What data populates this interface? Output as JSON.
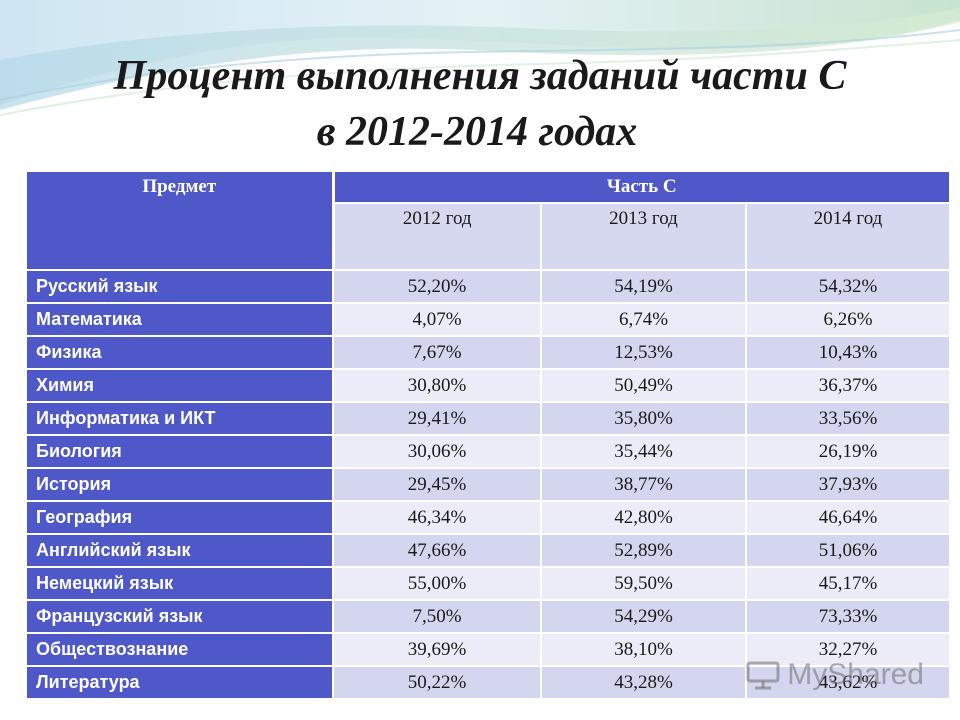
{
  "slide": {
    "title_line1": "Процент выполнения заданий части С",
    "title_line2": "в 2012-2014 годах"
  },
  "table": {
    "header": {
      "subject": "Предмет",
      "part": "Часть С",
      "years": [
        "2012 год",
        "2013 год",
        "2014 год"
      ]
    },
    "rows": [
      {
        "subject": "Русский язык",
        "values": [
          "52,20%",
          "54,19%",
          "54,32%"
        ]
      },
      {
        "subject": "Математика",
        "values": [
          "4,07%",
          "6,74%",
          "6,26%"
        ]
      },
      {
        "subject": "Физика",
        "values": [
          "7,67%",
          "12,53%",
          "10,43%"
        ]
      },
      {
        "subject": "Химия",
        "values": [
          "30,80%",
          "50,49%",
          "36,37%"
        ]
      },
      {
        "subject": "Информатика и ИКТ",
        "values": [
          "29,41%",
          "35,80%",
          "33,56%"
        ]
      },
      {
        "subject": "Биология",
        "values": [
          "30,06%",
          "35,44%",
          "26,19%"
        ]
      },
      {
        "subject": "История",
        "values": [
          "29,45%",
          "38,77%",
          "37,93%"
        ]
      },
      {
        "subject": "География",
        "values": [
          "46,34%",
          "42,80%",
          "46,64%"
        ]
      },
      {
        "subject": "Английский язык",
        "values": [
          "47,66%",
          "52,89%",
          "51,06%"
        ]
      },
      {
        "subject": "Немецкий язык",
        "values": [
          "55,00%",
          "59,50%",
          "45,17%"
        ]
      },
      {
        "subject": "Французский язык",
        "values": [
          "7,50%",
          "54,29%",
          "73,33%"
        ]
      },
      {
        "subject": "Обществознание",
        "values": [
          "39,69%",
          "38,10%",
          "32,27%"
        ]
      },
      {
        "subject": "Литература",
        "values": [
          "50,22%",
          "43,28%",
          "43,62%"
        ]
      }
    ]
  },
  "watermark": {
    "text": "MyShared"
  },
  "colors": {
    "header_blue": "#4f58c8",
    "row_light": "#ebecf7",
    "row_mid": "#d3d6ee",
    "title": "#1a1a1a"
  }
}
